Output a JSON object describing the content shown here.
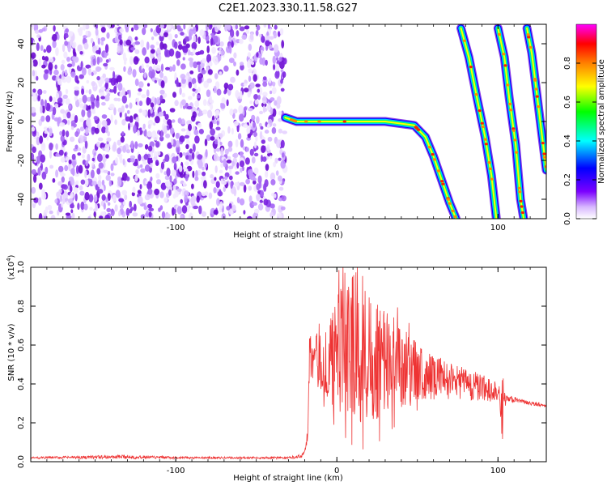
{
  "figure": {
    "title": "C2E1.2023.330.11.58.G27"
  },
  "chart_data": [
    {
      "type": "heatmap",
      "xlabel": "Height of straight line (km)",
      "ylabel": "Frequency (Hz)",
      "xlim": [
        -190,
        130
      ],
      "ylim": [
        -50,
        50
      ],
      "x_ticks": [
        "-100",
        "0",
        "100"
      ],
      "y_ticks": [
        "40",
        "20",
        "0",
        "-20",
        "-40"
      ],
      "grid": false,
      "noise_region_x": [
        -190,
        -32
      ],
      "tracks": [
        {
          "points": [
            [
              -32,
              2
            ],
            [
              -25,
              0
            ],
            [
              0,
              0
            ],
            [
              30,
              0
            ],
            [
              48,
              -2
            ],
            [
              55,
              -8
            ],
            [
              60,
              -18
            ],
            [
              65,
              -30
            ],
            [
              70,
              -42
            ],
            [
              74,
              -50
            ]
          ]
        },
        {
          "points": [
            [
              77,
              48
            ],
            [
              82,
              33
            ],
            [
              87,
              12
            ],
            [
              92,
              -8
            ],
            [
              96,
              -28
            ],
            [
              99,
              -50
            ]
          ]
        },
        {
          "points": [
            [
              100,
              48
            ],
            [
              104,
              33
            ],
            [
              107,
              12
            ],
            [
              111,
              -12
            ],
            [
              114,
              -40
            ],
            [
              116,
              -50
            ]
          ]
        },
        {
          "points": [
            [
              118,
              48
            ],
            [
              121,
              35
            ],
            [
              124,
              15
            ],
            [
              127,
              -5
            ],
            [
              130,
              -25
            ]
          ]
        }
      ],
      "colorbar": {
        "label": "Normalized spectral amplitude",
        "range": [
          0,
          1
        ],
        "ticks": [
          "0.0",
          "0.2",
          "0.4",
          "0.6",
          "0.8"
        ],
        "colors": [
          "#ffffff",
          "#7b00ff",
          "#0000ff",
          "#00ffff",
          "#00ff00",
          "#ffff00",
          "#ff8000",
          "#ff0000",
          "#ff00ff"
        ]
      }
    },
    {
      "type": "line",
      "xlabel": "Height of straight line (km)",
      "ylabel": "SNR (10 * v/v)",
      "multiplier": "(x10",
      "multiplier_exp": "4",
      "multiplier_close": ")",
      "xlim": [
        -190,
        130
      ],
      "ylim": [
        0,
        1.0
      ],
      "x_ticks": [
        "-100",
        "0",
        "100"
      ],
      "y_ticks": [
        "0.0",
        "0.2",
        "0.4",
        "0.6",
        "0.8",
        "1.0"
      ],
      "series": [
        {
          "color": "#ee3333",
          "envelope": {
            "x": [
              -190,
              -130,
              -100,
              -60,
              -30,
              -22,
              -20,
              -18,
              -17,
              -12,
              -5,
              0,
              5,
              10,
              15,
              20,
              25,
              30,
              35,
              40,
              50,
              60,
              70,
              80,
              90,
              100,
              103,
              105,
              110,
              120,
              130
            ],
            "base": [
              0.02,
              0.025,
              0.02,
              0.02,
              0.02,
              0.03,
              0.05,
              0.15,
              0.55,
              0.52,
              0.5,
              0.55,
              0.62,
              0.6,
              0.58,
              0.57,
              0.55,
              0.52,
              0.5,
              0.48,
              0.46,
              0.44,
              0.42,
              0.4,
              0.38,
              0.36,
              0.3,
              0.33,
              0.32,
              0.3,
              0.29
            ],
            "amp": [
              0.005,
              0.01,
              0.006,
              0.005,
              0.006,
              0.01,
              0.01,
              0.05,
              0.12,
              0.14,
              0.2,
              0.3,
              0.38,
              0.4,
              0.4,
              0.38,
              0.35,
              0.3,
              0.25,
              0.22,
              0.15,
              0.12,
              0.1,
              0.08,
              0.07,
              0.06,
              0.15,
              0.02,
              0.015,
              0.01,
              0.01
            ]
          }
        }
      ]
    }
  ]
}
